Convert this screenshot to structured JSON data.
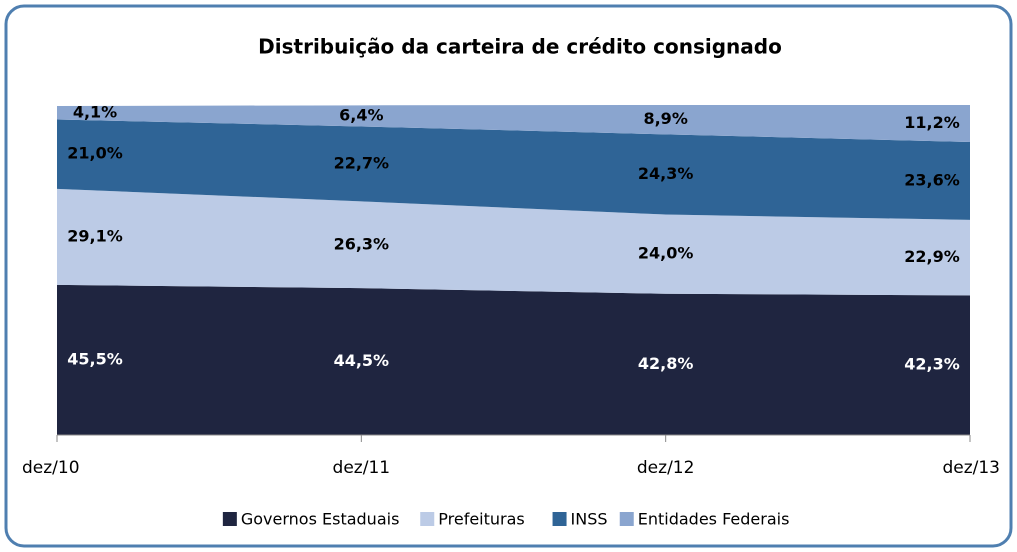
{
  "chart_data": {
    "type": "stacked_area",
    "title": "Distribuição da carteira de crédito consignado",
    "categories": [
      "dez/10",
      "dez/11",
      "dez/12",
      "dez/13"
    ],
    "ylim": [
      0,
      100
    ],
    "series": [
      {
        "name": "Governos Estaduais",
        "color": "#1f2540",
        "label_color": "#ffffff",
        "values": [
          45.5,
          44.5,
          42.8,
          42.3
        ],
        "value_labels": [
          "45,5%",
          "44,5%",
          "42,8%",
          "42,3%"
        ]
      },
      {
        "name": "Prefeituras",
        "color": "#bccbe6",
        "label_color": "#000000",
        "values": [
          29.1,
          26.3,
          24.0,
          22.9
        ],
        "value_labels": [
          "29,1%",
          "26,3%",
          "24,0%",
          "22,9%"
        ]
      },
      {
        "name": "INSS",
        "color": "#2f6496",
        "label_color": "#000000",
        "values": [
          21.0,
          22.7,
          24.3,
          23.6
        ],
        "value_labels": [
          "21,0%",
          "22,7%",
          "24,3%",
          "23,6%"
        ]
      },
      {
        "name": "Entidades Federais",
        "color": "#8aa5cf",
        "label_color": "#000000",
        "values": [
          4.1,
          6.4,
          8.9,
          11.2
        ],
        "value_labels": [
          "4,1%",
          "6,4%",
          "8,9%",
          "11,2%"
        ]
      }
    ]
  }
}
